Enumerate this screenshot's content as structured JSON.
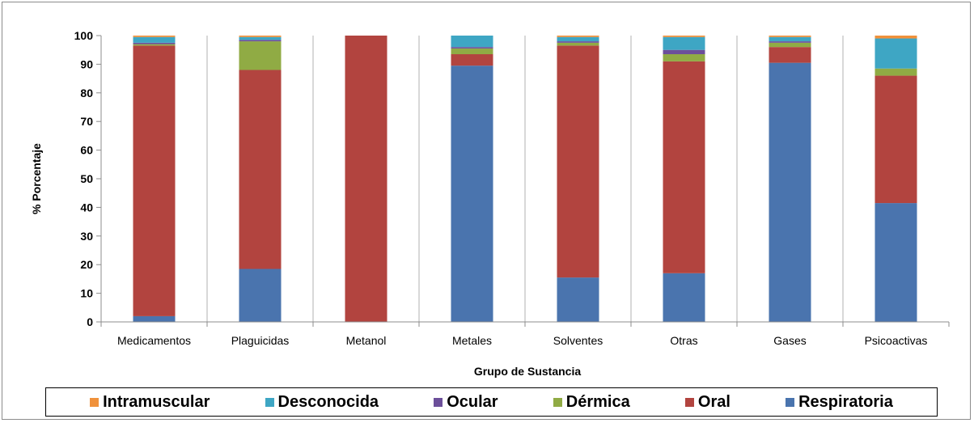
{
  "chart_data": {
    "type": "bar",
    "stacked": true,
    "categories": [
      "Medicamentos",
      "Plaguicidas",
      "Metanol",
      "Metales",
      "Solventes",
      "Otras",
      "Gases",
      "Psicoactivas"
    ],
    "series": [
      {
        "name": "Respiratoria",
        "color": "#4a74ae",
        "values": [
          2,
          18.5,
          0,
          89.5,
          15.5,
          17,
          90.5,
          41.5
        ]
      },
      {
        "name": "Oral",
        "color": "#b2443f",
        "values": [
          94.5,
          69.5,
          100,
          4,
          81,
          74,
          5.5,
          44.5
        ]
      },
      {
        "name": "Dérmica",
        "color": "#90ab44",
        "values": [
          0.5,
          10,
          0,
          2,
          1,
          2.5,
          1.5,
          2.5
        ]
      },
      {
        "name": "Ocular",
        "color": "#6c4f9a",
        "values": [
          0.5,
          0.5,
          0,
          0.5,
          0.5,
          1.5,
          0.5,
          0
        ]
      },
      {
        "name": "Desconocida",
        "color": "#3ea6c4",
        "values": [
          2,
          1,
          0,
          4,
          1.5,
          4.5,
          1.5,
          10.5
        ]
      },
      {
        "name": "Intramuscular",
        "color": "#f0913b",
        "values": [
          0.5,
          0.5,
          0,
          0,
          0.5,
          0.5,
          0.5,
          1
        ]
      }
    ],
    "legend_order": [
      "Intramuscular",
      "Desconocida",
      "Ocular",
      "Dérmica",
      "Oral",
      "Respiratoria"
    ],
    "xlabel": "Grupo de Sustancia",
    "ylabel": "% Porcentaje",
    "ylim": [
      0,
      100
    ],
    "yticks": [
      0,
      10,
      20,
      30,
      40,
      50,
      60,
      70,
      80,
      90,
      100
    ],
    "grid": false,
    "category_separators": true,
    "legend_position": "bottom"
  }
}
